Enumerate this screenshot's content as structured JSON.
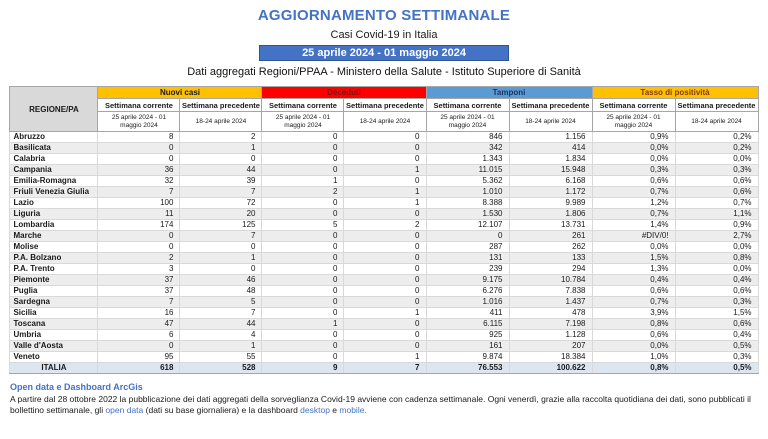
{
  "header": {
    "title": "AGGIORNAMENTO SETTIMANALE",
    "subtitle": "Casi Covid-19 in Italia",
    "date_banner": "25 aprile 2024 - 01 maggio 2024",
    "source": "Dati aggregati Regioni/PPAA - Ministero della Salute - Istituto Superiore di Sanità"
  },
  "colors": {
    "accent_blue": "#4472C4",
    "band_nuovi_casi": "#FFC000",
    "band_deceduti": "#FF0000",
    "band_tamponi": "#5B9BD5",
    "band_tasso": "#FFC000",
    "region_header_bg": "#D9D9D9",
    "row_stripe": "#EDEDED",
    "totals_row_bg": "#DCE6F1"
  },
  "table": {
    "region_header": "REGIONE/PA",
    "groups": [
      {
        "label": "Nuovi casi"
      },
      {
        "label": "Deceduti"
      },
      {
        "label": "Tamponi"
      },
      {
        "label": "Tasso di positività"
      }
    ],
    "subheaders": {
      "current_label": "Settimana corrente",
      "previous_label": "Settimana precedente",
      "current_dates": "25 aprile 2024 - 01 maggio 2024",
      "previous_dates": "18-24 aprile 2024"
    },
    "rows": [
      {
        "region": "Abruzzo",
        "values": [
          "8",
          "2",
          "0",
          "0",
          "846",
          "1.156",
          "0,9%",
          "0,2%"
        ]
      },
      {
        "region": "Basilicata",
        "values": [
          "0",
          "1",
          "0",
          "0",
          "342",
          "414",
          "0,0%",
          "0,2%"
        ]
      },
      {
        "region": "Calabria",
        "values": [
          "0",
          "0",
          "0",
          "0",
          "1.343",
          "1.834",
          "0,0%",
          "0,0%"
        ]
      },
      {
        "region": "Campania",
        "values": [
          "36",
          "44",
          "0",
          "1",
          "11.015",
          "15.948",
          "0,3%",
          "0,3%"
        ]
      },
      {
        "region": "Emilia-Romagna",
        "values": [
          "32",
          "39",
          "1",
          "0",
          "5.362",
          "6.168",
          "0,6%",
          "0,6%"
        ]
      },
      {
        "region": "Friuli Venezia Giulia",
        "values": [
          "7",
          "7",
          "2",
          "1",
          "1.010",
          "1.172",
          "0,7%",
          "0,6%"
        ]
      },
      {
        "region": "Lazio",
        "values": [
          "100",
          "72",
          "0",
          "1",
          "8.388",
          "9.989",
          "1,2%",
          "0,7%"
        ]
      },
      {
        "region": "Liguria",
        "values": [
          "11",
          "20",
          "0",
          "0",
          "1.530",
          "1.806",
          "0,7%",
          "1,1%"
        ]
      },
      {
        "region": "Lombardia",
        "values": [
          "174",
          "125",
          "5",
          "2",
          "12.107",
          "13.731",
          "1,4%",
          "0,9%"
        ]
      },
      {
        "region": "Marche",
        "values": [
          "0",
          "7",
          "0",
          "0",
          "0",
          "261",
          "#DIV/0!",
          "2,7%"
        ]
      },
      {
        "region": "Molise",
        "values": [
          "0",
          "0",
          "0",
          "0",
          "287",
          "262",
          "0,0%",
          "0,0%"
        ]
      },
      {
        "region": "P.A. Bolzano",
        "values": [
          "2",
          "1",
          "0",
          "0",
          "131",
          "133",
          "1,5%",
          "0,8%"
        ]
      },
      {
        "region": "P.A. Trento",
        "values": [
          "3",
          "0",
          "0",
          "0",
          "239",
          "294",
          "1,3%",
          "0,0%"
        ]
      },
      {
        "region": "Piemonte",
        "values": [
          "37",
          "46",
          "0",
          "0",
          "9.175",
          "10.784",
          "0,4%",
          "0,4%"
        ]
      },
      {
        "region": "Puglia",
        "values": [
          "37",
          "48",
          "0",
          "0",
          "6.276",
          "7.838",
          "0,6%",
          "0,6%"
        ]
      },
      {
        "region": "Sardegna",
        "values": [
          "7",
          "5",
          "0",
          "0",
          "1.016",
          "1.437",
          "0,7%",
          "0,3%"
        ]
      },
      {
        "region": "Sicilia",
        "values": [
          "16",
          "7",
          "0",
          "1",
          "411",
          "478",
          "3,9%",
          "1,5%"
        ]
      },
      {
        "region": "Toscana",
        "values": [
          "47",
          "44",
          "1",
          "0",
          "6.115",
          "7.198",
          "0,8%",
          "0,6%"
        ]
      },
      {
        "region": "Umbria",
        "values": [
          "6",
          "4",
          "0",
          "0",
          "925",
          "1.128",
          "0,6%",
          "0,4%"
        ]
      },
      {
        "region": "Valle d'Aosta",
        "values": [
          "0",
          "1",
          "0",
          "0",
          "161",
          "207",
          "0,0%",
          "0,5%"
        ]
      },
      {
        "region": "Veneto",
        "values": [
          "95",
          "55",
          "0",
          "1",
          "9.874",
          "18.384",
          "1,0%",
          "0,3%"
        ]
      }
    ],
    "totals": {
      "region": "ITALIA",
      "values": [
        "618",
        "528",
        "9",
        "7",
        "76.553",
        "100.622",
        "0,8%",
        "0,5%"
      ]
    }
  },
  "footer": {
    "title": "Open data e Dashboard ArcGis",
    "text_1": "A partire dal 28 ottobre 2022 la pubblicazione dei dati aggregati della sorveglianza Covid-19 avviene con cadenza settimanale. Ogni venerdì, grazie alla raccolta quotidiana dei dati, sono pubblicati il bollettino settimanale, gli ",
    "link_open_data": "open data",
    "text_2": " (dati su base giornaliera) e la dashboard ",
    "link_desktop": "desktop",
    "text_3": " e ",
    "link_mobile": "mobile."
  }
}
